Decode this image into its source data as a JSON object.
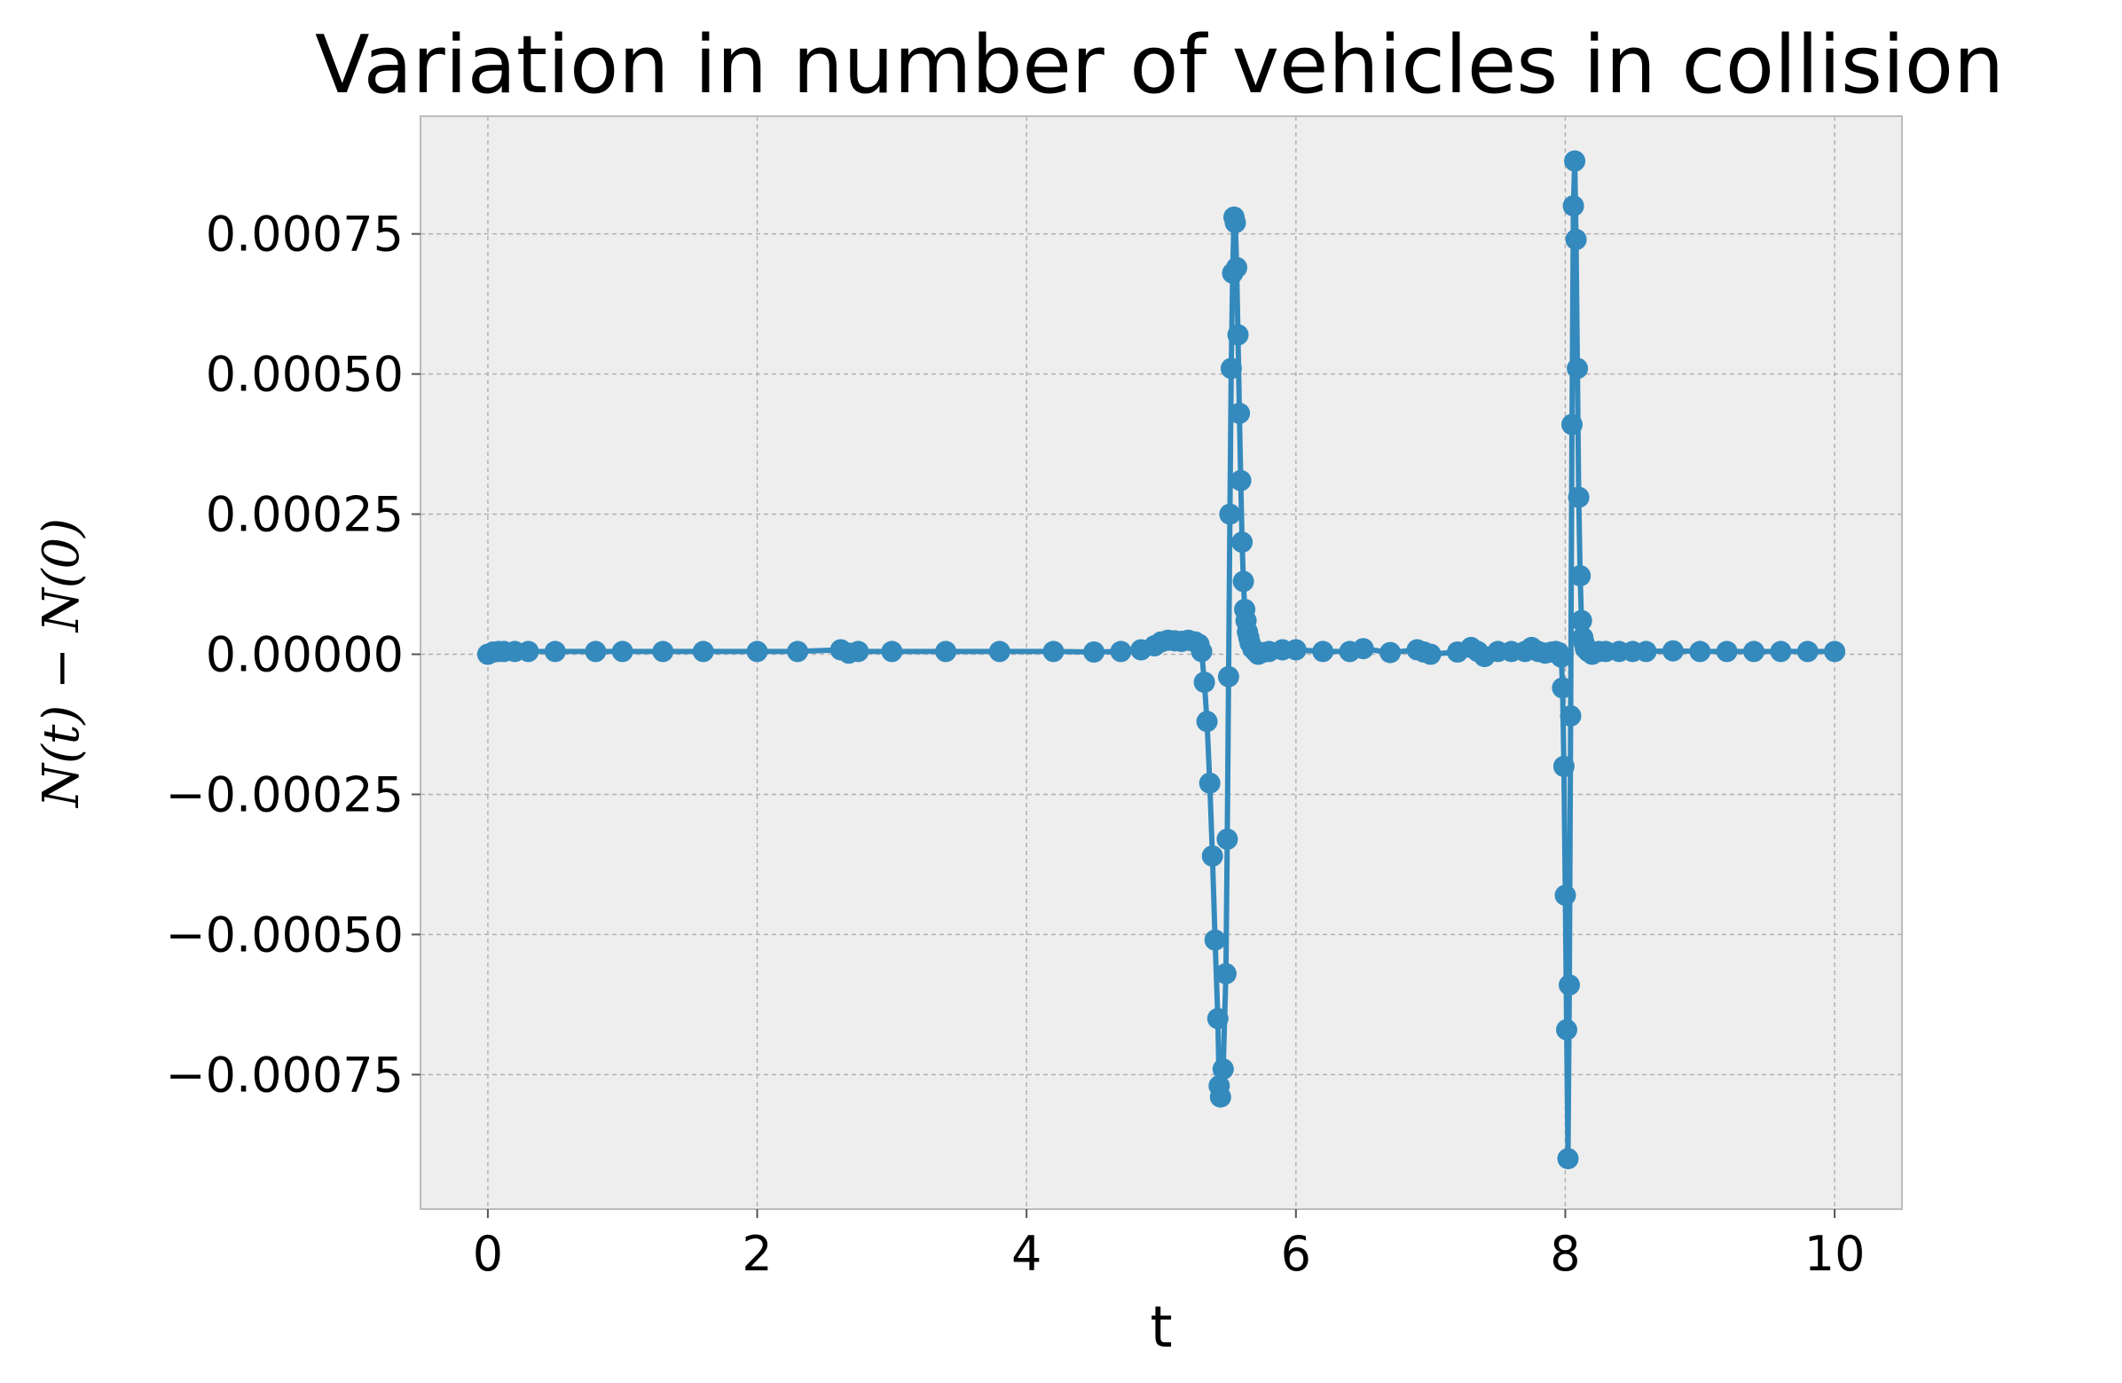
{
  "chart_data": {
    "type": "line",
    "title": "Variation in number of vehicles in collision",
    "xlabel": "t",
    "ylabel": "N(t) − N(0)",
    "xlim": [
      -0.5,
      10.5
    ],
    "ylim": [
      -0.00099,
      0.00096
    ],
    "grid": true,
    "legend": "none",
    "colors": {
      "series": "#348abd",
      "plot_background": "#eeeeee",
      "grid": "#b2b2b2",
      "frame": "#bcbcbc"
    },
    "xticks": [
      0,
      2,
      4,
      6,
      8,
      10
    ],
    "xtick_labels": [
      "0",
      "2",
      "4",
      "6",
      "8",
      "10"
    ],
    "yticks": [
      0.00075,
      0.0005,
      0.00025,
      0.0,
      -0.00025,
      -0.0005,
      -0.00075
    ],
    "ytick_labels": [
      "0.00075",
      "0.00050",
      "0.00025",
      "0.00000",
      "−0.00025",
      "−0.00050",
      "−0.00075"
    ],
    "series": [
      {
        "style": "line-with-markers",
        "x": [
          0.0,
          0.04,
          0.08,
          0.12,
          0.2,
          0.3,
          0.5,
          0.8,
          1.0,
          1.3,
          1.6,
          2.0,
          2.3,
          2.62,
          2.68,
          2.75,
          3.0,
          3.4,
          3.8,
          4.2,
          4.5,
          4.7,
          4.85,
          4.95,
          5.0,
          5.05,
          5.1,
          5.15,
          5.2,
          5.25,
          5.28,
          5.3,
          5.32,
          5.34,
          5.36,
          5.38,
          5.4,
          5.42,
          5.43,
          5.44,
          5.46,
          5.48,
          5.49,
          5.5,
          5.51,
          5.52,
          5.53,
          5.54,
          5.55,
          5.56,
          5.57,
          5.58,
          5.59,
          5.6,
          5.61,
          5.62,
          5.63,
          5.64,
          5.65,
          5.66,
          5.68,
          5.7,
          5.72,
          5.75,
          5.8,
          5.9,
          6.0,
          6.2,
          6.4,
          6.5,
          6.7,
          6.9,
          6.95,
          7.0,
          7.2,
          7.3,
          7.35,
          7.4,
          7.5,
          7.6,
          7.7,
          7.75,
          7.8,
          7.85,
          7.9,
          7.93,
          7.95,
          7.97,
          7.98,
          7.99,
          8.0,
          8.01,
          8.02,
          8.03,
          8.04,
          8.05,
          8.06,
          8.07,
          8.08,
          8.09,
          8.1,
          8.11,
          8.12,
          8.13,
          8.14,
          8.15,
          8.17,
          8.2,
          8.25,
          8.3,
          8.4,
          8.5,
          8.6,
          8.8,
          9.0,
          9.2,
          9.4,
          9.6,
          9.8,
          10.0
        ],
        "y": [
          0.0,
          4e-06,
          5e-06,
          5e-06,
          5e-06,
          5e-06,
          5e-06,
          5e-06,
          5e-06,
          5e-06,
          5e-06,
          5e-06,
          5e-06,
          8e-06,
          2e-06,
          5e-06,
          5e-06,
          5e-06,
          5e-06,
          5e-06,
          4e-06,
          5e-06,
          8e-06,
          1.5e-05,
          2.2e-05,
          2.5e-05,
          2.4e-05,
          2.3e-05,
          2.5e-05,
          2.2e-05,
          1.8e-05,
          5e-06,
          -5e-05,
          -0.00012,
          -0.00023,
          -0.00036,
          -0.00051,
          -0.00065,
          -0.00077,
          -0.00079,
          -0.00074,
          -0.00057,
          -0.00033,
          -4e-05,
          0.00025,
          0.00051,
          0.00068,
          0.00078,
          0.00077,
          0.00069,
          0.00057,
          0.00043,
          0.00031,
          0.0002,
          0.00013,
          8e-05,
          6e-05,
          4e-05,
          3e-05,
          2e-05,
          1e-05,
          5e-06,
          0.0,
          3e-06,
          5e-06,
          8e-06,
          8e-06,
          5e-06,
          5e-06,
          1e-05,
          3e-06,
          8e-06,
          4e-06,
          0.0,
          4e-06,
          1.2e-05,
          5e-06,
          -4e-06,
          5e-06,
          5e-06,
          5e-06,
          1.2e-05,
          5e-06,
          2e-06,
          4e-06,
          5e-06,
          3e-06,
          -5e-06,
          -6e-05,
          -0.0002,
          -0.00043,
          -0.00067,
          -0.0009,
          -0.00059,
          -0.00011,
          0.00041,
          0.0008,
          0.00088,
          0.00074,
          0.00051,
          0.00028,
          0.00014,
          6e-05,
          3e-05,
          2e-05,
          1e-05,
          5e-06,
          0.0,
          5e-06,
          5e-06,
          5e-06,
          5e-06,
          5e-06,
          6e-06,
          5e-06,
          5e-06,
          5e-06,
          5e-06,
          5e-06,
          5e-06
        ]
      }
    ]
  }
}
